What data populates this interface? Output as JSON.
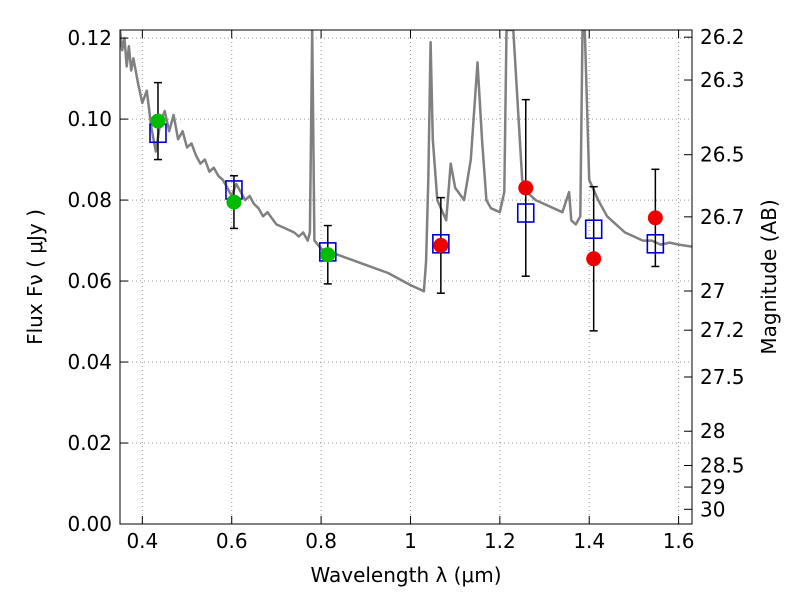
{
  "chart_data": {
    "type": "scatter",
    "title": "",
    "xlabel": "Wavelength  λ (μm)",
    "ylabel": "Flux  Fν  ( μJy )",
    "y2label": "Magnitude (AB)",
    "xlim": [
      0.35,
      1.63
    ],
    "ylim": [
      0.0,
      0.122
    ],
    "grid": true,
    "x_ticks": [
      0.4,
      0.6,
      0.8,
      1.0,
      1.2,
      1.4,
      1.6
    ],
    "x_tick_labels": [
      "0.4",
      "0.6",
      "0.8",
      "1",
      "1.2",
      "1.4",
      "1.6"
    ],
    "y_ticks": [
      0.0,
      0.02,
      0.04,
      0.06,
      0.08,
      0.1,
      0.12
    ],
    "y_tick_labels": [
      "0.00",
      "0.02",
      "0.04",
      "0.06",
      "0.08",
      "0.10",
      "0.12"
    ],
    "mag_ticks": [
      26.2,
      26.3,
      26.5,
      26.7,
      27,
      27.2,
      27.5,
      28,
      28.5,
      29,
      30
    ],
    "mag_tick_labels": [
      "26.2",
      "26.3",
      "26.5",
      "26.7",
      "27",
      "27.2",
      "27.5",
      "28",
      "28.5",
      "29",
      "30"
    ],
    "colors": {
      "model": "#808080",
      "optical": "#00bb00",
      "nir": "#ee0000",
      "model_box": "#0000cc",
      "errorbar": "#000000",
      "grid": "#999999"
    },
    "series": [
      {
        "kind": "line",
        "points": [
          [
            0.35,
            0.122
          ],
          [
            0.355,
            0.117
          ],
          [
            0.36,
            0.12
          ],
          [
            0.365,
            0.113
          ],
          [
            0.37,
            0.118
          ],
          [
            0.375,
            0.112
          ],
          [
            0.38,
            0.115
          ],
          [
            0.39,
            0.109
          ],
          [
            0.4,
            0.104
          ],
          [
            0.41,
            0.107
          ],
          [
            0.42,
            0.098
          ],
          [
            0.43,
            0.092
          ],
          [
            0.44,
            0.099
          ],
          [
            0.45,
            0.102
          ],
          [
            0.46,
            0.097
          ],
          [
            0.47,
            0.101
          ],
          [
            0.48,
            0.095
          ],
          [
            0.49,
            0.097
          ],
          [
            0.5,
            0.093
          ],
          [
            0.51,
            0.094
          ],
          [
            0.52,
            0.091
          ],
          [
            0.53,
            0.089
          ],
          [
            0.54,
            0.09
          ],
          [
            0.55,
            0.087
          ],
          [
            0.56,
            0.088
          ],
          [
            0.57,
            0.086
          ],
          [
            0.58,
            0.085
          ],
          [
            0.59,
            0.083
          ],
          [
            0.6,
            0.081
          ],
          [
            0.61,
            0.084
          ],
          [
            0.62,
            0.082
          ],
          [
            0.63,
            0.08
          ],
          [
            0.64,
            0.081
          ],
          [
            0.65,
            0.079
          ],
          [
            0.66,
            0.078
          ],
          [
            0.67,
            0.076
          ],
          [
            0.68,
            0.077
          ],
          [
            0.7,
            0.074
          ],
          [
            0.72,
            0.073
          ],
          [
            0.74,
            0.072
          ],
          [
            0.75,
            0.071
          ],
          [
            0.76,
            0.072
          ],
          [
            0.77,
            0.07
          ],
          [
            0.775,
            0.072
          ],
          [
            0.78,
            0.122
          ],
          [
            0.785,
            0.07
          ],
          [
            0.8,
            0.068
          ],
          [
            0.85,
            0.066
          ],
          [
            0.9,
            0.064
          ],
          [
            0.95,
            0.062
          ],
          [
            1.0,
            0.059
          ],
          [
            1.03,
            0.0575
          ],
          [
            1.035,
            0.065
          ],
          [
            1.04,
            0.085
          ],
          [
            1.045,
            0.119
          ],
          [
            1.05,
            0.095
          ],
          [
            1.06,
            0.08
          ],
          [
            1.08,
            0.075
          ],
          [
            1.09,
            0.089
          ],
          [
            1.1,
            0.083
          ],
          [
            1.12,
            0.08
          ],
          [
            1.135,
            0.09
          ],
          [
            1.15,
            0.114
          ],
          [
            1.16,
            0.095
          ],
          [
            1.17,
            0.08
          ],
          [
            1.18,
            0.078
          ],
          [
            1.2,
            0.077
          ],
          [
            1.21,
            0.082
          ],
          [
            1.215,
            0.122
          ],
          [
            1.23,
            0.122
          ],
          [
            1.25,
            0.085
          ],
          [
            1.26,
            0.082
          ],
          [
            1.28,
            0.08
          ],
          [
            1.3,
            0.079
          ],
          [
            1.32,
            0.078
          ],
          [
            1.34,
            0.077
          ],
          [
            1.355,
            0.082
          ],
          [
            1.36,
            0.075
          ],
          [
            1.37,
            0.074
          ],
          [
            1.38,
            0.076
          ],
          [
            1.385,
            0.122
          ],
          [
            1.39,
            0.122
          ],
          [
            1.4,
            0.085
          ],
          [
            1.42,
            0.08
          ],
          [
            1.44,
            0.076
          ],
          [
            1.46,
            0.074
          ],
          [
            1.48,
            0.072
          ],
          [
            1.5,
            0.071
          ],
          [
            1.52,
            0.07
          ],
          [
            1.54,
            0.07
          ],
          [
            1.56,
            0.069
          ],
          [
            1.58,
            0.0695
          ],
          [
            1.6,
            0.069
          ],
          [
            1.63,
            0.0685
          ]
        ]
      },
      {
        "kind": "points-optical",
        "x": [
          0.435,
          0.605,
          0.815
        ],
        "y": [
          0.0995,
          0.0795,
          0.0665
        ],
        "err": [
          0.0095,
          0.0065,
          0.0072
        ]
      },
      {
        "kind": "points-nir",
        "x": [
          1.068,
          1.258,
          1.41,
          1.548
        ],
        "y": [
          0.0688,
          0.083,
          0.0655,
          0.0756
        ],
        "err": [
          0.0118,
          0.0218,
          0.0178,
          0.012
        ]
      },
      {
        "kind": "boxes",
        "x": [
          0.435,
          0.605,
          0.815,
          1.068,
          1.258,
          1.41,
          1.548
        ],
        "y": [
          0.0965,
          0.0825,
          0.0672,
          0.0692,
          0.0768,
          0.0728,
          0.0692
        ]
      }
    ]
  }
}
